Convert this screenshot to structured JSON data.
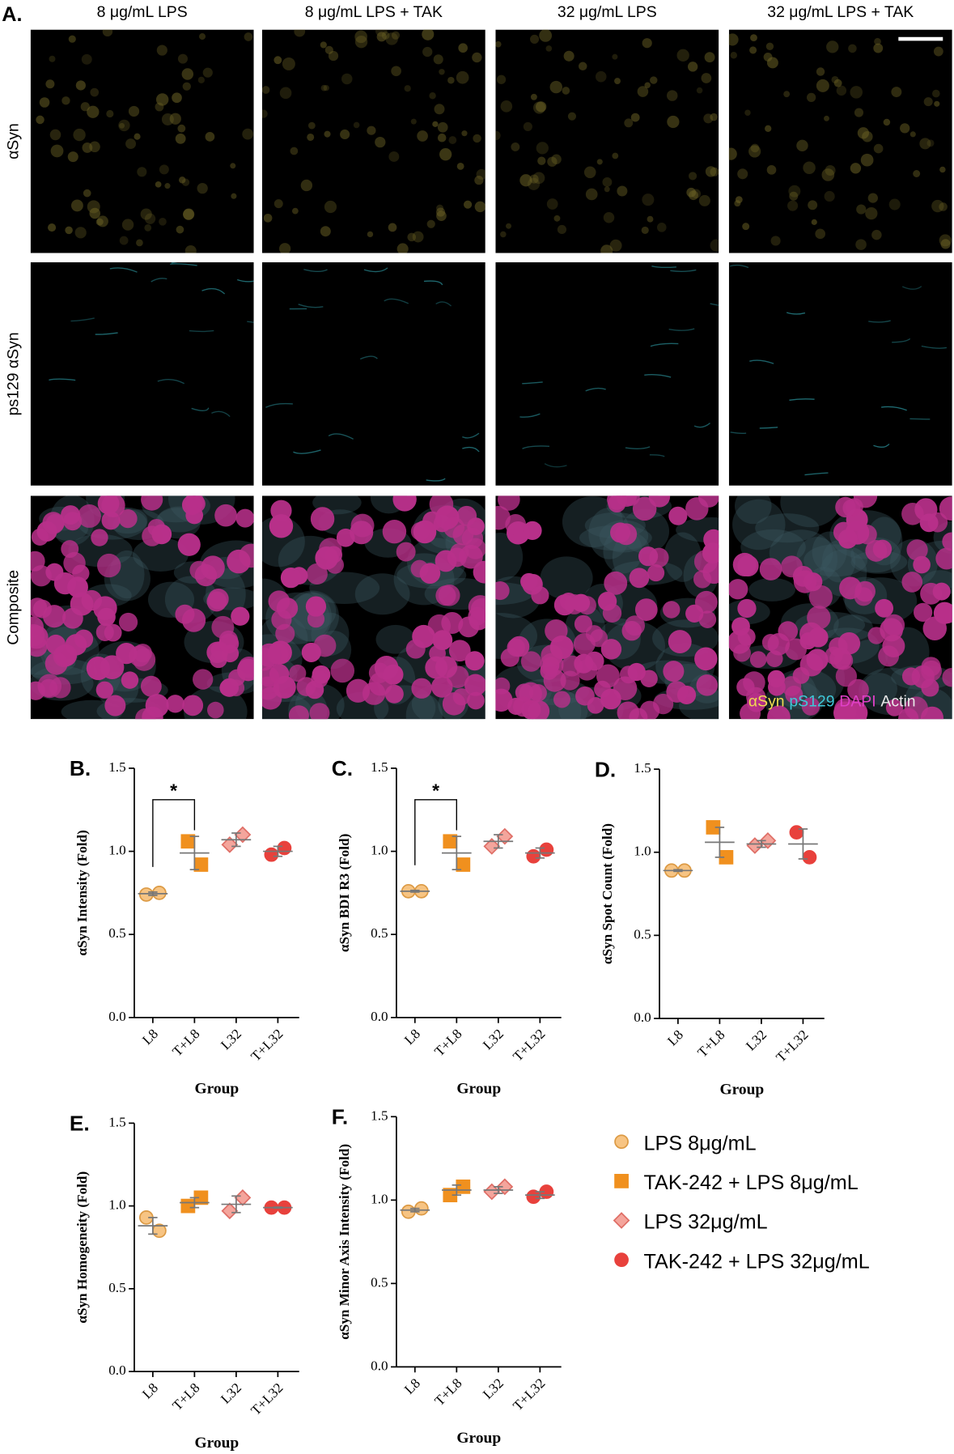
{
  "panel_a": {
    "label": "A.",
    "columns": [
      "8 μg/mL LPS",
      "8 μg/mL LPS + TAK",
      "32 μg/mL LPS",
      "32 μg/mL LPS + TAK"
    ],
    "rows": [
      "αSyn",
      "ps129 αSyn",
      "Composite"
    ],
    "channels": [
      {
        "name": "αSyn",
        "color": "#f0dc50"
      },
      {
        "name": "pS129",
        "color": "#3ec8d8"
      },
      {
        "name": "DAPI",
        "color": "#e040c8"
      },
      {
        "name": "Actin",
        "color": "#e8e8e8"
      }
    ]
  },
  "legend": [
    {
      "name": "LPS 8μg/mL",
      "color": "#f7c483",
      "stroke": "#dc9a44",
      "marker": "circle"
    },
    {
      "name": "TAK-242 + LPS 8μg/mL",
      "color": "#f0901e",
      "stroke": "#f0901e",
      "marker": "square"
    },
    {
      "name": "LPS 32μg/mL",
      "color": "#f4a59c",
      "stroke": "#df6e66",
      "marker": "diamond"
    },
    {
      "name": "TAK-242 + LPS 32μg/mL",
      "color": "#e8413c",
      "stroke": "#e8413c",
      "marker": "circle"
    }
  ],
  "chart_data": [
    {
      "type": "scatter",
      "label": "B.",
      "ylabel": "αSyn Intensity (Fold)",
      "xlabel": "Group",
      "categories": [
        "L8",
        "T+L8",
        "L32",
        "T+L32"
      ],
      "ylim": [
        0,
        1.5
      ],
      "yticks": [
        {
          "value": 0,
          "label": "0.0"
        },
        {
          "value": 0.5,
          "label": "0.5"
        },
        {
          "value": 1,
          "label": "1.0"
        },
        {
          "value": 1.5,
          "label": "1.5"
        }
      ],
      "values": [
        [
          0.74,
          0.75
        ],
        [
          1.06,
          0.92
        ],
        [
          1.04,
          1.1
        ],
        [
          0.98,
          1.02
        ]
      ],
      "means": [
        0.745,
        0.99,
        1.07,
        1.0
      ],
      "errors": [
        0.01,
        0.1,
        0.04,
        0.03
      ],
      "annotations": [
        {
          "text": "*",
          "between": [
            "L8",
            "T+L8"
          ]
        }
      ]
    },
    {
      "type": "scatter",
      "label": "C.",
      "ylabel": "αSyn BDI R3 (Fold)",
      "xlabel": "Group",
      "categories": [
        "L8",
        "T+L8",
        "L32",
        "T+L32"
      ],
      "ylim": [
        0,
        1.5
      ],
      "yticks": [
        {
          "value": 0,
          "label": "0.0"
        },
        {
          "value": 0.5,
          "label": "0.5"
        },
        {
          "value": 1,
          "label": "1.0"
        },
        {
          "value": 1.5,
          "label": "1.5"
        }
      ],
      "values": [
        [
          0.76,
          0.76
        ],
        [
          1.06,
          0.92
        ],
        [
          1.03,
          1.09
        ],
        [
          0.97,
          1.01
        ]
      ],
      "means": [
        0.76,
        0.99,
        1.06,
        0.99
      ],
      "errors": [
        0.005,
        0.1,
        0.04,
        0.03
      ],
      "annotations": [
        {
          "text": "*",
          "between": [
            "L8",
            "T+L8"
          ]
        }
      ]
    },
    {
      "type": "scatter",
      "label": "D.",
      "ylabel": "αSyn Spot Count (Fold)",
      "xlabel": "Group",
      "categories": [
        "L8",
        "T+L8",
        "L32",
        "T+L32"
      ],
      "ylim": [
        0,
        1.5
      ],
      "yticks": [
        {
          "value": 0,
          "label": "0.0"
        },
        {
          "value": 0.5,
          "label": "0.5"
        },
        {
          "value": 1,
          "label": "1.0"
        },
        {
          "value": 1.5,
          "label": "1.5"
        }
      ],
      "values": [
        [
          0.89,
          0.89
        ],
        [
          1.15,
          0.97
        ],
        [
          1.04,
          1.07
        ],
        [
          1.12,
          0.97
        ]
      ],
      "means": [
        0.89,
        1.06,
        1.05,
        1.05
      ],
      "errors": [
        0.005,
        0.09,
        0.02,
        0.09
      ],
      "annotations": []
    },
    {
      "type": "scatter",
      "label": "E.",
      "ylabel": "αSyn Homogeneity (Fold)",
      "xlabel": "Group",
      "categories": [
        "L8",
        "T+L8",
        "L32",
        "T+L32"
      ],
      "ylim": [
        0,
        1.5
      ],
      "yticks": [
        {
          "value": 0,
          "label": "0.0"
        },
        {
          "value": 0.5,
          "label": "0.5"
        },
        {
          "value": 1,
          "label": "1.0"
        },
        {
          "value": 1.5,
          "label": "1.5"
        }
      ],
      "values": [
        [
          0.93,
          0.85
        ],
        [
          1.0,
          1.05
        ],
        [
          0.97,
          1.05
        ],
        [
          0.99,
          0.99
        ]
      ],
      "means": [
        0.88,
        1.02,
        1.01,
        0.99
      ],
      "errors": [
        0.05,
        0.03,
        0.05,
        0.003
      ],
      "annotations": []
    },
    {
      "type": "scatter",
      "label": "F.",
      "ylabel": "αSyn Minor Axis Intensity (Fold)",
      "xlabel": "Group",
      "categories": [
        "L8",
        "T+L8",
        "L32",
        "T+L32"
      ],
      "ylim": [
        0,
        1.5
      ],
      "yticks": [
        {
          "value": 0,
          "label": "0.0"
        },
        {
          "value": 0.5,
          "label": "0.5"
        },
        {
          "value": 1,
          "label": "1.0"
        },
        {
          "value": 1.5,
          "label": "1.5"
        }
      ],
      "values": [
        [
          0.93,
          0.95
        ],
        [
          1.03,
          1.08
        ],
        [
          1.05,
          1.08
        ],
        [
          1.02,
          1.05
        ]
      ],
      "means": [
        0.94,
        1.06,
        1.06,
        1.03
      ],
      "errors": [
        0.01,
        0.03,
        0.02,
        0.02
      ],
      "annotations": []
    }
  ]
}
